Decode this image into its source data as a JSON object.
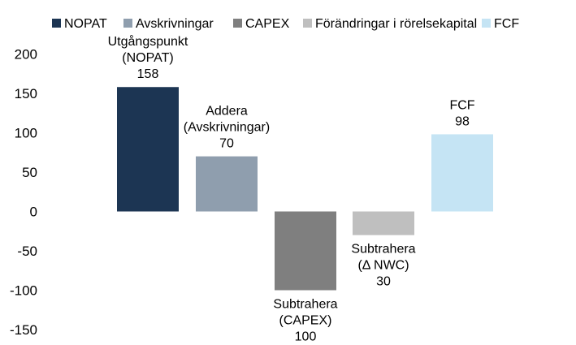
{
  "chart_data": {
    "type": "bar",
    "categories": [
      "NOPAT",
      "Avskrivningar",
      "CAPEX",
      "Förändringar i rörelsekapital",
      "FCF"
    ],
    "values": [
      158,
      70,
      -100,
      -30,
      98
    ],
    "colors": [
      "#1c3553",
      "#8f9eae",
      "#7f7f7f",
      "#bfbfbf",
      "#c5e4f4"
    ],
    "data_labels": [
      [
        "Utgångspunkt",
        "(NOPAT)",
        "158"
      ],
      [
        "Addera",
        "(Avskrivningar)",
        "70"
      ],
      [
        "Subtrahera",
        "(CAPEX)",
        "100"
      ],
      [
        "Subtrahera",
        "(Δ NWC)",
        "30"
      ],
      [
        "FCF",
        "98"
      ]
    ],
    "legend": [
      "NOPAT",
      "Avskrivningar",
      "CAPEX",
      "Förändringar i rörelsekapital",
      "FCF"
    ],
    "legend_position": "top",
    "yticks": [
      200,
      150,
      100,
      50,
      0,
      -50,
      -100,
      -150
    ],
    "ylim": [
      -150,
      200
    ],
    "grid": false,
    "title": "",
    "xlabel": "",
    "ylabel": ""
  }
}
